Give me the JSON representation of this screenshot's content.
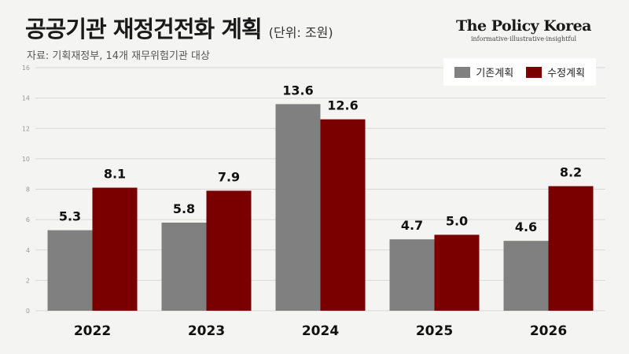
{
  "header": {
    "title": "공공기관 재정건전화 계획",
    "unit": "(단위: 조원)",
    "source": "자료: 기획재정부, 14개 재무위험기관 대상"
  },
  "brand": {
    "name": "The Policy Korea",
    "tagline": "informative·illustrative·insightful"
  },
  "colors": {
    "original": "#808080",
    "revised": "#7a0000",
    "grid": "#d8d8d8",
    "tick": "#999999",
    "label": "#111111"
  },
  "chart_data": {
    "type": "bar",
    "title": "공공기관 재정건전화 계획",
    "categories": [
      "2022",
      "2023",
      "2024",
      "2025",
      "2026"
    ],
    "series": [
      {
        "name": "기존계획",
        "values": [
          5.3,
          5.8,
          13.6,
          4.7,
          4.6
        ]
      },
      {
        "name": "수정계획",
        "values": [
          8.1,
          7.9,
          12.6,
          5.0,
          8.2
        ]
      }
    ],
    "data_labels": [
      [
        "5.3",
        "5.8",
        "13.6",
        "4.7",
        "4.6"
      ],
      [
        "8.1",
        "7.9",
        "12.6",
        "5.0",
        "8.2"
      ]
    ],
    "ylim": [
      0,
      16
    ],
    "yticks": [
      0,
      2,
      4,
      6,
      8,
      10,
      12,
      14,
      16
    ],
    "grid": true,
    "legend": "top-right"
  }
}
